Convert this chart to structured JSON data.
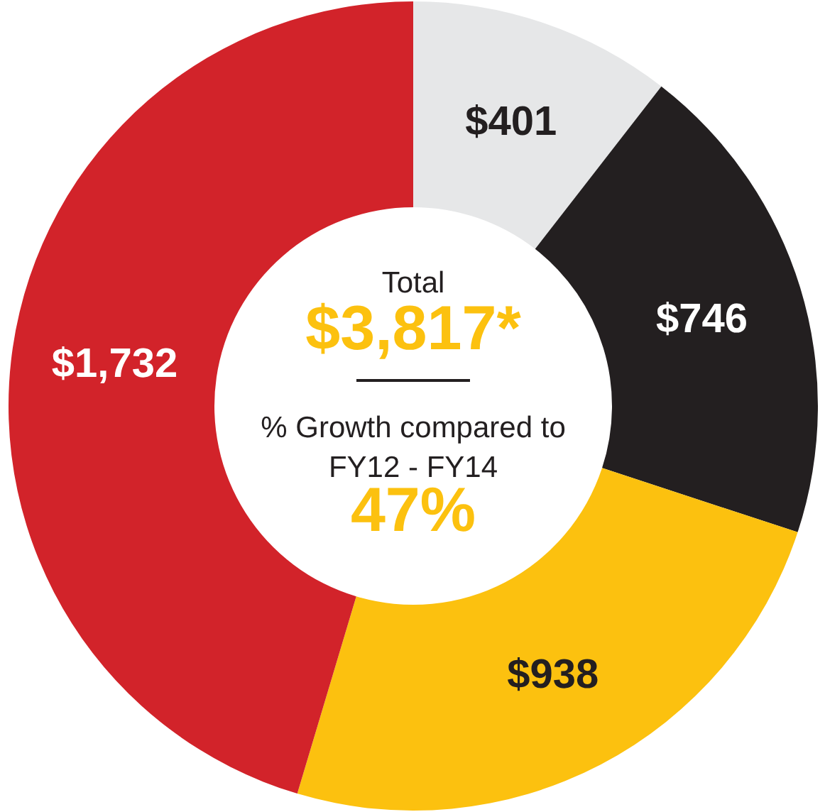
{
  "chart_data": {
    "type": "donut",
    "categories": [
      null,
      null,
      null,
      null
    ],
    "values": [
      401,
      746,
      938,
      1732
    ],
    "colors": [
      "#e6e7e8",
      "#231f20",
      "#fcc10f",
      "#d2232a"
    ],
    "value_labels": [
      "$401",
      "$746",
      "$938",
      "$1,732"
    ],
    "annotations": [
      "Total",
      "$3,817*",
      "% Growth compared to FY12 - FY14",
      "47%"
    ]
  }
}
